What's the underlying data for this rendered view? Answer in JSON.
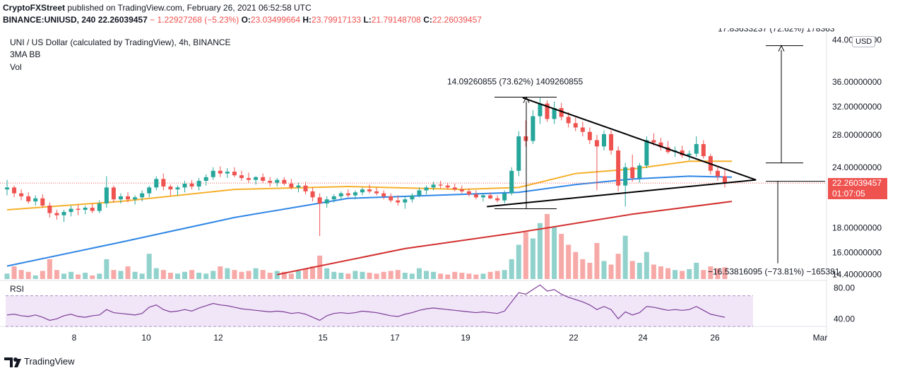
{
  "header": {
    "publisher": "CryptoFXStreet",
    "published_text": "published on TradingView.com, February 26, 2021 06:52:58 UTC",
    "symbol_line": "BINANCE:UNIUSD, 240",
    "last": "22.26039457",
    "change": "− 1.22927268 (−5.23%)",
    "o_label": "O:",
    "o": "23.03499664",
    "h_label": "H:",
    "h": "23.79917133",
    "l_label": "L:",
    "l": "21.79148708",
    "c_label": "C:",
    "c": "22.26039457"
  },
  "legend": {
    "title": "UNI / US Dollar (calculated by TradingView), 4h, BINANCE",
    "indicator": "3MA BB",
    "volume": "Vol"
  },
  "price_axis": {
    "currency": "USD",
    "last_price": "22.26039457",
    "countdown": "01:07:05"
  },
  "annotations": {
    "target_up": "17.83633237 (72.62%) 178363",
    "flagpole": "14.09260855 (73.62%) 1409260855",
    "target_down": "−16.53816095 (−73.81%) −165381"
  },
  "rsi": {
    "label": "RSI",
    "levels": [
      80,
      40
    ],
    "upper_band": 70,
    "lower_band": 30
  },
  "footer": {
    "brand": "TradingView"
  },
  "colors": {
    "up": "#26a69a",
    "down": "#ef5350",
    "ma_yellow": "#f6b02c",
    "ma_blue": "#2f86e6",
    "ma_red": "#d32f2f",
    "rsi_line": "#7e3c96",
    "rsi_band": "#f0e6f8"
  },
  "chart_data": {
    "type": "candlestick",
    "scale": "log",
    "x_ticks": [
      "8",
      "10",
      "12",
      "15",
      "17",
      "19",
      "22",
      "24",
      "26",
      "Mar"
    ],
    "y_ticks": [
      14.4,
      16,
      18,
      24,
      28,
      32,
      36,
      44
    ],
    "y_tick_labels": [
      "14.40000000",
      "16.00000000",
      "18.00000000",
      "24.00000000",
      "28.00000000",
      "32.00000000",
      "36.00000000",
      "44.00000000"
    ],
    "patterns": [
      {
        "type": "symmetrical triangle",
        "upper_line": [
          [
            20.5,
            33.4
          ],
          [
            25.3,
            25.5
          ]
        ],
        "lower_line": [
          [
            19.5,
            19.9
          ],
          [
            26.2,
            22.5
          ]
        ],
        "apex": [
          27.0,
          22.6
        ]
      }
    ],
    "ohlc_4h_estimated": [
      [
        21.6,
        22.6,
        21.0,
        21.8
      ],
      [
        21.8,
        22.0,
        20.8,
        21.2
      ],
      [
        21.2,
        21.6,
        20.5,
        20.9
      ],
      [
        20.9,
        21.3,
        20.2,
        20.4
      ],
      [
        20.4,
        21.0,
        20.0,
        20.7
      ],
      [
        20.7,
        21.1,
        19.8,
        20.0
      ],
      [
        20.0,
        20.3,
        18.9,
        19.3
      ],
      [
        19.3,
        19.6,
        18.7,
        19.1
      ],
      [
        19.1,
        19.6,
        18.5,
        19.4
      ],
      [
        19.4,
        20.0,
        19.0,
        19.7
      ],
      [
        19.7,
        20.1,
        19.1,
        19.6
      ],
      [
        19.6,
        20.0,
        19.2,
        19.8
      ],
      [
        19.8,
        20.2,
        19.3,
        19.5
      ],
      [
        19.5,
        20.5,
        19.3,
        20.2
      ],
      [
        20.2,
        23.0,
        19.8,
        21.8
      ],
      [
        21.8,
        22.0,
        20.3,
        20.6
      ],
      [
        20.6,
        21.2,
        20.2,
        20.9
      ],
      [
        20.9,
        21.3,
        20.3,
        20.6
      ],
      [
        20.6,
        21.0,
        20.1,
        20.8
      ],
      [
        20.8,
        21.5,
        20.4,
        21.2
      ],
      [
        21.2,
        22.0,
        20.8,
        21.8
      ],
      [
        21.8,
        23.0,
        21.5,
        22.7
      ],
      [
        22.7,
        23.3,
        21.5,
        21.9
      ],
      [
        21.9,
        22.1,
        21.0,
        21.6
      ],
      [
        21.6,
        22.0,
        21.0,
        21.8
      ],
      [
        21.8,
        22.5,
        21.3,
        22.2
      ],
      [
        22.2,
        22.6,
        21.6,
        21.9
      ],
      [
        21.9,
        22.8,
        21.5,
        22.5
      ],
      [
        22.5,
        23.2,
        22.0,
        22.9
      ],
      [
        22.9,
        24.0,
        22.6,
        23.6
      ],
      [
        23.6,
        24.1,
        22.9,
        23.3
      ],
      [
        23.3,
        23.9,
        22.8,
        23.5
      ],
      [
        23.5,
        24.0,
        22.9,
        23.1
      ],
      [
        23.1,
        23.6,
        22.5,
        22.8
      ],
      [
        22.8,
        23.4,
        22.3,
        22.6
      ],
      [
        22.6,
        23.0,
        22.1,
        22.9
      ],
      [
        22.9,
        23.3,
        22.3,
        22.5
      ],
      [
        22.5,
        22.9,
        21.9,
        22.3
      ],
      [
        22.3,
        22.8,
        21.9,
        22.6
      ],
      [
        22.6,
        22.9,
        22.0,
        22.2
      ],
      [
        22.2,
        22.7,
        21.6,
        21.8
      ],
      [
        21.8,
        22.3,
        21.3,
        22.0
      ],
      [
        22.0,
        22.4,
        21.1,
        21.4
      ],
      [
        21.4,
        21.8,
        20.4,
        20.8
      ],
      [
        20.8,
        21.2,
        17.3,
        20.2
      ],
      [
        20.2,
        20.9,
        19.8,
        20.6
      ],
      [
        20.6,
        21.1,
        20.3,
        20.9
      ],
      [
        20.9,
        21.4,
        20.5,
        21.2
      ],
      [
        21.2,
        21.6,
        20.8,
        21.0
      ],
      [
        21.0,
        21.5,
        20.6,
        21.3
      ],
      [
        21.3,
        21.8,
        21.0,
        21.6
      ],
      [
        21.6,
        22.1,
        21.2,
        21.4
      ],
      [
        21.4,
        21.8,
        21.0,
        21.2
      ],
      [
        21.2,
        21.5,
        20.6,
        20.9
      ],
      [
        20.9,
        21.2,
        20.3,
        20.5
      ],
      [
        20.5,
        21.0,
        20.0,
        20.3
      ],
      [
        20.3,
        20.9,
        19.7,
        20.6
      ],
      [
        20.6,
        21.2,
        20.3,
        21.0
      ],
      [
        21.0,
        21.8,
        20.8,
        21.5
      ],
      [
        21.5,
        22.0,
        21.1,
        21.8
      ],
      [
        21.8,
        22.4,
        21.5,
        22.1
      ],
      [
        22.1,
        22.5,
        21.7,
        22.0
      ],
      [
        22.0,
        22.3,
        21.6,
        21.8
      ],
      [
        21.8,
        22.2,
        21.4,
        21.6
      ],
      [
        21.6,
        22.0,
        21.2,
        21.4
      ],
      [
        21.4,
        21.7,
        20.9,
        21.1
      ],
      [
        21.1,
        21.5,
        20.6,
        20.8
      ],
      [
        20.8,
        21.2,
        20.4,
        21.0
      ],
      [
        21.0,
        21.3,
        20.6,
        20.7
      ],
      [
        20.7,
        21.0,
        20.3,
        20.5
      ],
      [
        20.5,
        21.5,
        20.2,
        21.2
      ],
      [
        21.2,
        24.0,
        21.0,
        23.6
      ],
      [
        23.6,
        28.5,
        23.0,
        27.8
      ],
      [
        27.8,
        30.0,
        26.5,
        27.2
      ],
      [
        27.2,
        31.5,
        26.8,
        30.6
      ],
      [
        30.6,
        33.4,
        29.5,
        32.5
      ],
      [
        32.5,
        33.0,
        29.8,
        30.2
      ],
      [
        30.2,
        32.8,
        29.5,
        31.8
      ],
      [
        31.8,
        32.6,
        30.0,
        30.5
      ],
      [
        30.5,
        31.2,
        29.0,
        29.6
      ],
      [
        29.6,
        30.4,
        28.5,
        29.0
      ],
      [
        29.0,
        29.8,
        27.8,
        28.4
      ],
      [
        28.4,
        29.0,
        26.8,
        27.3
      ],
      [
        27.3,
        28.0,
        21.5,
        26.5
      ],
      [
        26.5,
        28.6,
        26.0,
        28.1
      ],
      [
        28.1,
        28.6,
        25.5,
        26.0
      ],
      [
        26.0,
        26.5,
        21.4,
        22.0
      ],
      [
        22.0,
        24.5,
        19.9,
        24.0
      ],
      [
        24.0,
        25.5,
        22.4,
        22.8
      ],
      [
        22.8,
        24.5,
        22.3,
        24.2
      ],
      [
        24.2,
        27.8,
        23.9,
        27.3
      ],
      [
        27.3,
        28.2,
        26.6,
        27.0
      ],
      [
        27.0,
        27.6,
        26.0,
        26.4
      ],
      [
        26.4,
        27.2,
        25.6,
        25.8
      ],
      [
        25.8,
        26.5,
        25.2,
        26.0
      ],
      [
        26.0,
        26.6,
        25.1,
        25.4
      ],
      [
        25.4,
        26.0,
        24.8,
        25.6
      ],
      [
        25.6,
        27.8,
        25.2,
        26.8
      ],
      [
        26.8,
        27.3,
        25.0,
        25.3
      ],
      [
        25.3,
        25.6,
        23.2,
        23.6
      ],
      [
        23.6,
        24.0,
        22.5,
        23.0
      ],
      [
        23.0,
        23.8,
        21.8,
        22.26
      ]
    ],
    "series": [
      {
        "name": "MA yellow",
        "x": [
          0,
          16,
          32,
          48,
          64,
          72,
          80,
          88,
          96,
          102
        ],
        "y": [
          19.6,
          20.4,
          21.6,
          21.9,
          21.6,
          21.8,
          23.3,
          23.8,
          24.7,
          24.7
        ]
      },
      {
        "name": "MA blue",
        "x": [
          0,
          16,
          32,
          48,
          64,
          72,
          80,
          88,
          96,
          102
        ],
        "y": [
          15.0,
          16.8,
          18.9,
          20.7,
          21.1,
          21.3,
          22.1,
          22.7,
          23.0,
          22.9
        ]
      },
      {
        "name": "MA red",
        "x": [
          38,
          56,
          72,
          88,
          102
        ],
        "y": [
          14.4,
          16.3,
          17.6,
          19.2,
          20.4
        ]
      }
    ],
    "volume_estimated": [
      6,
      14,
      10,
      8,
      4,
      9,
      22,
      10,
      6,
      8,
      5,
      7,
      4,
      6,
      22,
      10,
      9,
      14,
      8,
      6,
      28,
      12,
      10,
      7,
      6,
      8,
      10,
      7,
      6,
      9,
      14,
      12,
      10,
      8,
      9,
      12,
      10,
      7,
      9,
      8,
      6,
      9,
      11,
      14,
      26,
      12,
      8,
      7,
      6,
      9,
      8,
      7,
      6,
      8,
      9,
      10,
      7,
      6,
      12,
      9,
      8,
      6,
      5,
      8,
      7,
      6,
      5,
      6,
      8,
      9,
      10,
      22,
      38,
      52,
      45,
      62,
      72,
      58,
      50,
      38,
      30,
      22,
      18,
      40,
      20,
      16,
      28,
      48,
      20,
      18,
      30,
      16,
      14,
      12,
      10,
      9,
      11,
      18,
      10,
      14,
      12,
      13
    ],
    "rsi_estimated": [
      45,
      46,
      44,
      43,
      45,
      42,
      38,
      40,
      44,
      46,
      43,
      42,
      44,
      45,
      52,
      48,
      47,
      46,
      45,
      47,
      55,
      58,
      52,
      49,
      50,
      52,
      50,
      54,
      57,
      60,
      58,
      57,
      55,
      53,
      52,
      51,
      50,
      49,
      50,
      49,
      47,
      48,
      46,
      42,
      38,
      44,
      47,
      48,
      47,
      48,
      50,
      49,
      48,
      46,
      44,
      43,
      46,
      48,
      51,
      53,
      54,
      53,
      52,
      51,
      50,
      49,
      48,
      49,
      48,
      47,
      50,
      62,
      74,
      72,
      78,
      84,
      76,
      78,
      72,
      68,
      65,
      62,
      58,
      52,
      56,
      52,
      40,
      49,
      45,
      48,
      56,
      55,
      53,
      51,
      52,
      51,
      52,
      56,
      51,
      46,
      44,
      42
    ]
  }
}
